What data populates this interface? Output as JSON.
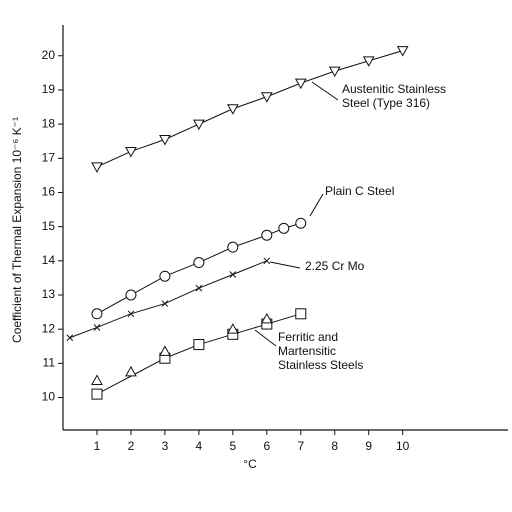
{
  "chart_data": {
    "type": "scatter",
    "y_label": "Coefficient of Thermal Expansion 10⁻⁶ K⁻¹",
    "x_label": "°C",
    "xlim": [
      0,
      13.1
    ],
    "ylim": [
      9.05,
      20.9
    ],
    "xticks": [
      1,
      2,
      3,
      4,
      5,
      6,
      7,
      8,
      9,
      10
    ],
    "yticks": [
      10,
      11,
      12,
      13,
      14,
      15,
      16,
      17,
      18,
      19,
      20
    ],
    "color": "#111111",
    "series": [
      {
        "name": "Austenitic Stainless Steel (Type 316)",
        "marker": "triangle-down",
        "line": true,
        "x": [
          1,
          2,
          3,
          4,
          5,
          6,
          7,
          8,
          9,
          10
        ],
        "values": [
          16.75,
          17.2,
          17.55,
          18.0,
          18.45,
          18.8,
          19.2,
          19.55,
          19.85,
          20.15
        ]
      },
      {
        "name": "Plain C Steel",
        "marker": "circle",
        "line": true,
        "x": [
          1,
          2,
          3,
          4,
          5,
          6,
          6.5,
          7
        ],
        "values": [
          12.45,
          13.0,
          13.55,
          13.95,
          14.4,
          14.75,
          14.95,
          15.1
        ]
      },
      {
        "name": "2.25 Cr Mo",
        "marker": "cross",
        "line": true,
        "x": [
          0.2,
          1,
          2,
          3,
          4,
          5,
          6
        ],
        "values": [
          11.75,
          12.05,
          12.45,
          12.75,
          13.2,
          13.6,
          14.0
        ]
      },
      {
        "name": "Ferritic and Martensitic Stainless Steels",
        "marker": "square",
        "line": true,
        "x": [
          1,
          3,
          4,
          5,
          6,
          7
        ],
        "values": [
          10.1,
          11.15,
          11.55,
          11.85,
          12.15,
          12.45
        ]
      },
      {
        "marker": "triangle-up",
        "line": false,
        "x": [
          1,
          2,
          3,
          5,
          6
        ],
        "values": [
          10.5,
          10.75,
          11.35,
          12.0,
          12.3
        ]
      }
    ]
  }
}
